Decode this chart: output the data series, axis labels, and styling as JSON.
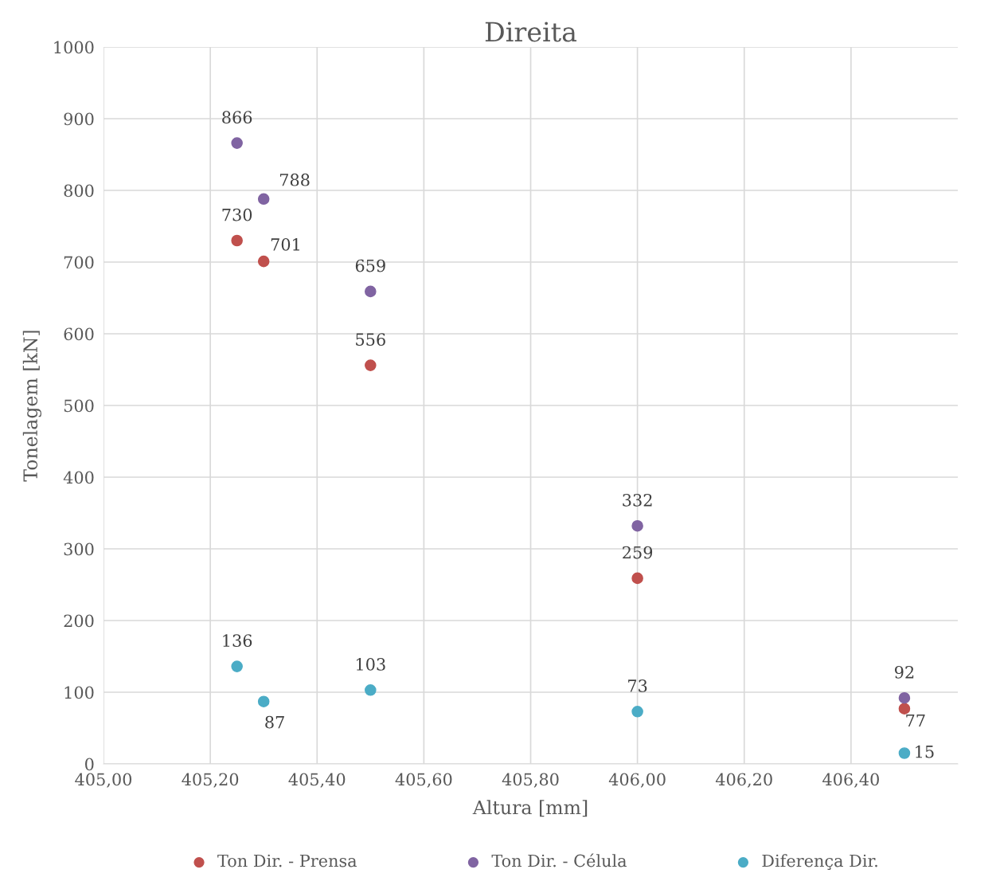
{
  "chart_data": {
    "type": "scatter",
    "title": "Direita",
    "xlabel": "Altura [mm]",
    "ylabel": "Tonelagem [kN]",
    "x": [
      405.25,
      405.3,
      405.5,
      406.0,
      406.5
    ],
    "series": [
      {
        "name": "Ton Dir. - Prensa",
        "color": "#c0504d",
        "values": [
          730,
          701,
          556,
          259,
          77
        ]
      },
      {
        "name": "Ton Dir. - Célula",
        "color": "#8064a2",
        "values": [
          866,
          788,
          659,
          332,
          92
        ]
      },
      {
        "name": "Diferença Dir.",
        "color": "#4bacc6",
        "values": [
          136,
          87,
          103,
          73,
          15
        ]
      }
    ],
    "xlim": [
      405.0,
      406.6
    ],
    "xticks": [
      {
        "value": 405.0,
        "label": "405,00"
      },
      {
        "value": 405.2,
        "label": "405,20"
      },
      {
        "value": 405.4,
        "label": "405,40"
      },
      {
        "value": 405.6,
        "label": "405,60"
      },
      {
        "value": 405.8,
        "label": "405,80"
      },
      {
        "value": 406.0,
        "label": "406,00"
      },
      {
        "value": 406.2,
        "label": "406,20"
      },
      {
        "value": 406.4,
        "label": "406,40"
      }
    ],
    "ylim": [
      0,
      1000
    ],
    "yticks": [
      0,
      100,
      200,
      300,
      400,
      500,
      600,
      700,
      800,
      900,
      1000
    ],
    "grid": true,
    "legend": "bottom",
    "marker": "circle",
    "data_labels": true
  }
}
